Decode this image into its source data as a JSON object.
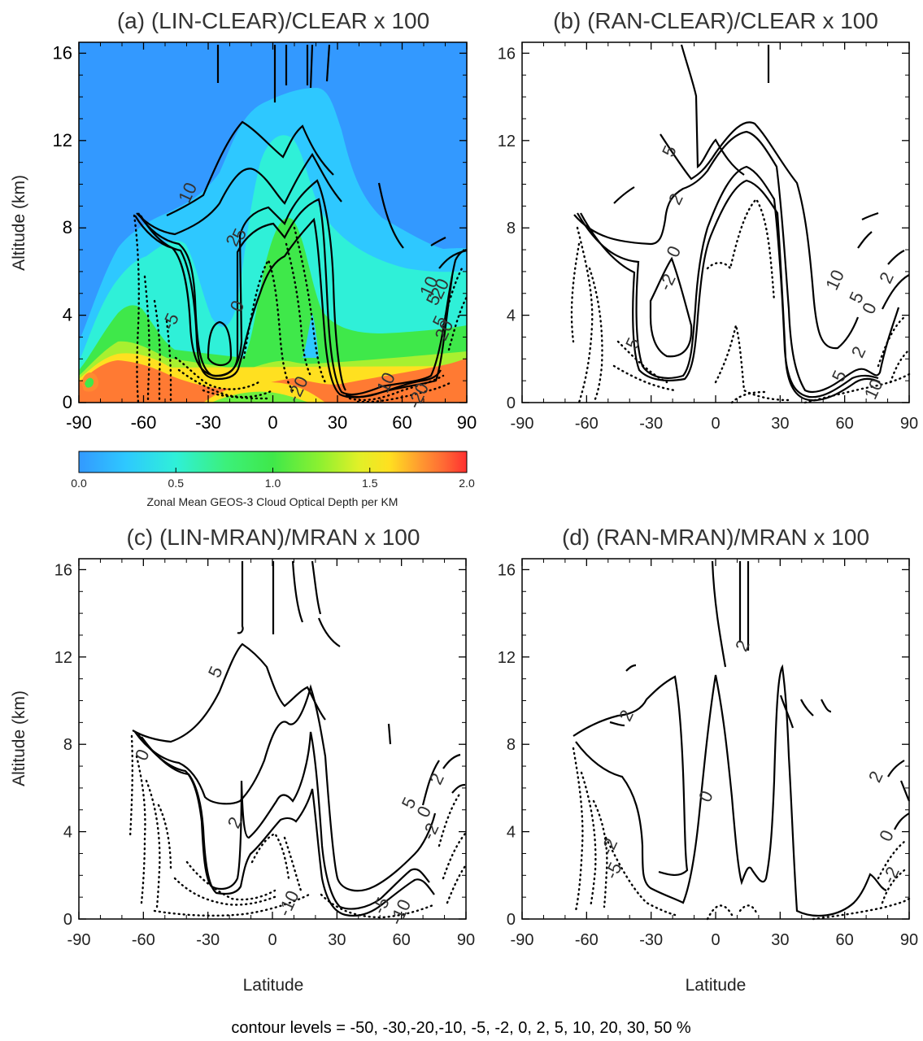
{
  "chart_data": [
    {
      "type": "contour",
      "panel": "a",
      "title": "(a) (LIN-CLEAR)/CLEAR x 100",
      "xlabel": "",
      "ylabel": "Altitude (km)",
      "xlim": [
        -90,
        90
      ],
      "ylim": [
        0,
        16.5
      ],
      "xticks": [
        "-90",
        "-60",
        "-30",
        "0",
        "30",
        "60",
        "90"
      ],
      "yticks": [
        "0",
        "4",
        "8",
        "12",
        "16"
      ],
      "filled_field": "Zonal Mean GEOS-3 Cloud Optical Depth per KM",
      "contour_labels": [
        {
          "text": "10",
          "x": -37,
          "y": 9.5
        },
        {
          "text": "2",
          "x": -16,
          "y": 7.3
        },
        {
          "text": "5",
          "x": -13,
          "y": 7.6
        },
        {
          "text": "0",
          "x": -14,
          "y": 4.3
        },
        {
          "text": "-5",
          "x": -45,
          "y": 3.6
        },
        {
          "text": "-20",
          "x": 14,
          "y": 0.5
        },
        {
          "text": "10",
          "x": 55,
          "y": 0.8
        },
        {
          "text": "-20",
          "x": 70,
          "y": 0.2
        },
        {
          "text": "10",
          "x": 75,
          "y": 5.2
        },
        {
          "text": "5",
          "x": 77,
          "y": 4.6
        },
        {
          "text": "20",
          "x": 80,
          "y": 5.1
        },
        {
          "text": "5",
          "x": 80,
          "y": 3.6
        },
        {
          "text": "20",
          "x": 82,
          "y": 3.2
        }
      ]
    },
    {
      "type": "contour",
      "panel": "b",
      "title": "(b) (RAN-CLEAR)/CLEAR x 100",
      "xlabel": "",
      "ylabel": "",
      "xlim": [
        -90,
        90
      ],
      "ylim": [
        0,
        16.5
      ],
      "xticks": [
        "-90",
        "-60",
        "-30",
        "0",
        "30",
        "60",
        "90"
      ],
      "yticks": [
        "0",
        "4",
        "8",
        "12",
        "16"
      ],
      "contour_labels": [
        {
          "text": "5",
          "x": -19,
          "y": 11.4
        },
        {
          "text": "2",
          "x": -16,
          "y": 9.2
        },
        {
          "text": "0",
          "x": -17,
          "y": 6.8
        },
        {
          "text": "-2",
          "x": -20,
          "y": 5.4
        },
        {
          "text": "5",
          "x": -36,
          "y": 2.6
        },
        {
          "text": "10",
          "x": 58,
          "y": 5.5
        },
        {
          "text": "5",
          "x": 68,
          "y": 4.7
        },
        {
          "text": "0",
          "x": 74,
          "y": 4.2
        },
        {
          "text": "2",
          "x": 82,
          "y": 5.6
        },
        {
          "text": "2",
          "x": 69,
          "y": 2.2
        },
        {
          "text": "5",
          "x": 60,
          "y": 1.1
        },
        {
          "text": "10",
          "x": 76,
          "y": 0.5
        }
      ]
    },
    {
      "type": "contour",
      "panel": "c",
      "title": "(c) (LIN-MRAN)/MRAN x 100",
      "xlabel": "Latitude",
      "ylabel": "Altitude (km)",
      "xlim": [
        -90,
        90
      ],
      "ylim": [
        0,
        16.5
      ],
      "xticks": [
        "-90",
        "-60",
        "-30",
        "0",
        "30",
        "60",
        "90"
      ],
      "yticks": [
        "0",
        "4",
        "8",
        "12",
        "16"
      ],
      "contour_labels": [
        {
          "text": "5",
          "x": -24,
          "y": 11.2
        },
        {
          "text": "0",
          "x": -58,
          "y": 7.4
        },
        {
          "text": "2",
          "x": -15,
          "y": 4.3
        },
        {
          "text": "-10",
          "x": 10,
          "y": 0.6
        },
        {
          "text": "-5",
          "x": 53,
          "y": 0.5
        },
        {
          "text": "-10",
          "x": 62,
          "y": 0.2
        },
        {
          "text": "5",
          "x": 66,
          "y": 5.2
        },
        {
          "text": "0",
          "x": 73,
          "y": 4.8
        },
        {
          "text": "-2",
          "x": 76,
          "y": 3.9
        },
        {
          "text": "2",
          "x": 79,
          "y": 6.3
        }
      ]
    },
    {
      "type": "contour",
      "panel": "d",
      "title": "(d) (RAN-MRAN)/MRAN x 100",
      "xlabel": "Latitude",
      "ylabel": "",
      "xlim": [
        -90,
        90
      ],
      "ylim": [
        0,
        16.5
      ],
      "xticks": [
        "-90",
        "-60",
        "-30",
        "0",
        "30",
        "60",
        "90"
      ],
      "yticks": [
        "0",
        "4",
        "8",
        "12",
        "16"
      ],
      "contour_labels": [
        {
          "text": "2",
          "x": 15,
          "y": 12.4
        },
        {
          "text": "2",
          "x": -39,
          "y": 9.2
        },
        {
          "text": "0",
          "x": -2,
          "y": 5.5
        },
        {
          "text": "-2",
          "x": -47,
          "y": 3.2
        },
        {
          "text": "-5",
          "x": -45,
          "y": 2.1
        },
        {
          "text": "2",
          "x": 77,
          "y": 6.4
        },
        {
          "text": "0",
          "x": 82,
          "y": 3.7
        },
        {
          "text": "-2",
          "x": 84,
          "y": 1.9
        }
      ]
    }
  ],
  "colorbar": {
    "title": "Zonal Mean GEOS-3 Cloud Optical Depth per KM",
    "range": [
      0.0,
      2.0
    ],
    "ticks": [
      "0.0",
      "0.5",
      "1.0",
      "1.5",
      "2.0"
    ],
    "colors": [
      "#3399ff",
      "#2ec8ff",
      "#2ff0d8",
      "#3cf07a",
      "#3fe84a",
      "#8cf030",
      "#e0f028",
      "#ffe020",
      "#ff9a30",
      "#ff6a34",
      "#ff3030"
    ]
  },
  "footer": "contour levels = -50, -30,-20,-10, -5, -2, 0, 2, 5, 10, 20, 30, 50 %"
}
